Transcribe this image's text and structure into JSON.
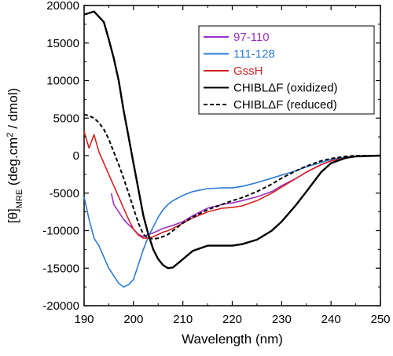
{
  "chart_data": {
    "type": "line",
    "xlabel": "Wavelength (nm)",
    "ylabel": {
      "prefix": "[θ]",
      "sub": "MRE",
      "main": " (deg.cm",
      "sup": "2",
      "tail": " / dmol)"
    },
    "xlim": [
      190,
      250
    ],
    "ylim": [
      -20000,
      20000
    ],
    "xticks": [
      190,
      200,
      210,
      220,
      230,
      240,
      250
    ],
    "yticks": [
      -20000,
      -15000,
      -10000,
      -5000,
      0,
      5000,
      10000,
      15000,
      20000
    ],
    "legend_position": "top-right",
    "series": [
      {
        "name": "97-110",
        "color": "#9b30c8",
        "dash": "solid",
        "label_color": "#9b30c8",
        "x": [
          195.5,
          196,
          197,
          198,
          199,
          200,
          201,
          202,
          203,
          204,
          205,
          206,
          208,
          210,
          212,
          215,
          218,
          220,
          222,
          225,
          228,
          230,
          233,
          235,
          238,
          240,
          243,
          245,
          250
        ],
        "y": [
          -5000,
          -6500,
          -7500,
          -8500,
          -9200,
          -9800,
          -10500,
          -10800,
          -10500,
          -10300,
          -10000,
          -9700,
          -9300,
          -8800,
          -8000,
          -7000,
          -6500,
          -6300,
          -6000,
          -5500,
          -4800,
          -4000,
          -3000,
          -2200,
          -1200,
          -700,
          -300,
          -100,
          0
        ]
      },
      {
        "name": "111-128",
        "color": "#2b7bd6",
        "dash": "solid",
        "label_color": "#2b7bd6",
        "x": [
          190,
          191,
          192,
          193,
          194,
          195,
          196,
          197,
          198,
          199,
          200,
          201,
          202,
          203,
          204,
          205,
          206,
          207,
          208,
          210,
          212,
          215,
          218,
          220,
          222,
          225,
          228,
          230,
          233,
          235,
          238,
          240,
          243,
          245,
          250
        ],
        "y": [
          -5500,
          -8500,
          -11000,
          -12000,
          -13500,
          -15000,
          -16000,
          -17000,
          -17500,
          -17200,
          -16500,
          -14500,
          -12500,
          -10800,
          -9500,
          -8200,
          -7200,
          -6500,
          -6000,
          -5300,
          -4800,
          -4400,
          -4300,
          -4300,
          -4100,
          -3600,
          -3000,
          -2600,
          -2000,
          -1500,
          -900,
          -500,
          -200,
          -100,
          0
        ]
      },
      {
        "name": "GssH",
        "color": "#d42020",
        "dash": "solid",
        "label_color": "#d42020",
        "x": [
          190,
          191,
          192,
          193,
          194,
          195,
          196,
          197,
          198,
          199,
          200,
          201,
          202,
          203,
          204,
          205,
          206,
          207,
          208,
          210,
          212,
          215,
          218,
          220,
          222,
          225,
          228,
          230,
          233,
          235,
          238,
          240,
          243,
          245,
          250
        ],
        "y": [
          3200,
          1000,
          2800,
          500,
          -1000,
          -2500,
          -4000,
          -5500,
          -7000,
          -8500,
          -9800,
          -10600,
          -11000,
          -11000,
          -10800,
          -10500,
          -10200,
          -10000,
          -9700,
          -9000,
          -8300,
          -7500,
          -7000,
          -6900,
          -6700,
          -6000,
          -5000,
          -4200,
          -3000,
          -2200,
          -1200,
          -700,
          -300,
          -100,
          0
        ]
      },
      {
        "name": "CHIBLΔF (oxidized)",
        "color": "#000000",
        "dash": "solid",
        "label_color": "#000000",
        "x": [
          190,
          191,
          192,
          193,
          194,
          195,
          196,
          197,
          198,
          199,
          200,
          201,
          202,
          203,
          204,
          205,
          206,
          207,
          208,
          210,
          212,
          215,
          218,
          220,
          222,
          225,
          228,
          230,
          233,
          235,
          238,
          240,
          243,
          245,
          250
        ],
        "y": [
          18800,
          19000,
          19200,
          18500,
          17800,
          15500,
          13000,
          10000,
          6000,
          2500,
          -1000,
          -4500,
          -8000,
          -10500,
          -12500,
          -13800,
          -14600,
          -15000,
          -14900,
          -13800,
          -12700,
          -12000,
          -12000,
          -12000,
          -11800,
          -11200,
          -10000,
          -8800,
          -6500,
          -4800,
          -2200,
          -1000,
          -300,
          -100,
          0
        ]
      },
      {
        "name": "CHIBLΔF (reduced)",
        "color": "#000000",
        "dash": "dashed",
        "label_color": "#000000",
        "x": [
          190,
          191,
          192,
          193,
          194,
          195,
          196,
          197,
          198,
          199,
          200,
          201,
          202,
          203,
          204,
          205,
          206,
          207,
          208,
          210,
          212,
          215,
          218,
          220,
          222,
          225,
          228,
          230,
          233,
          235,
          238,
          240,
          243,
          245,
          250
        ],
        "y": [
          5500,
          5300,
          5000,
          4400,
          3500,
          2200,
          500,
          -1200,
          -3000,
          -5000,
          -7000,
          -9000,
          -10500,
          -11000,
          -11100,
          -11000,
          -10800,
          -10500,
          -10000,
          -9000,
          -8200,
          -7200,
          -6500,
          -6000,
          -5600,
          -4800,
          -3800,
          -3000,
          -2000,
          -1400,
          -700,
          -400,
          -100,
          0,
          0
        ]
      }
    ]
  }
}
